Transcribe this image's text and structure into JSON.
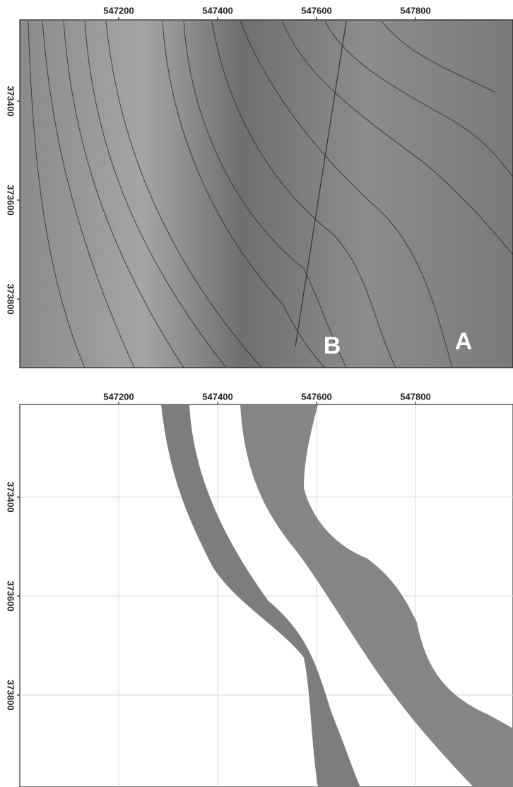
{
  "panels": [
    {
      "x_labels": [
        "547200",
        "547400",
        "547600",
        "547800"
      ],
      "y_labels": [
        "373400",
        "373600",
        "373800"
      ],
      "annotations": [
        "B",
        "A"
      ]
    },
    {
      "x_labels": [
        "547200",
        "547400",
        "547600",
        "547800"
      ],
      "y_labels": [
        "373400",
        "373600",
        "373800"
      ]
    }
  ]
}
